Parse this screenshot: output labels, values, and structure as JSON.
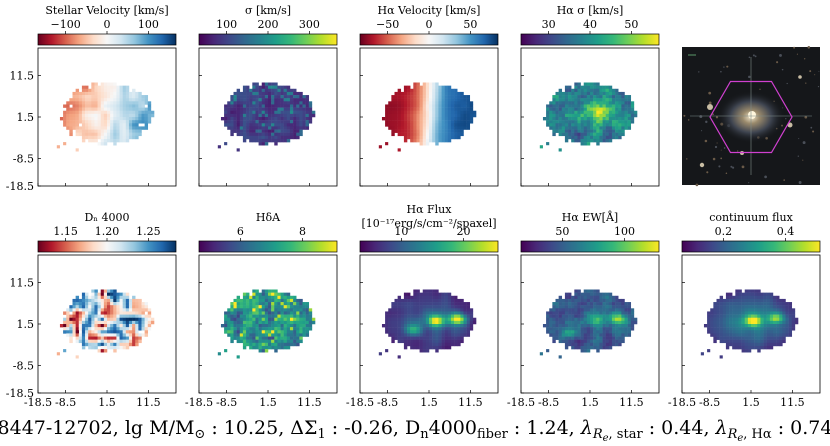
{
  "colors": {
    "rdbu": [
      "#053061",
      "#2166ac",
      "#4393c3",
      "#92c5de",
      "#d1e5f0",
      "#f7f7f7",
      "#fddbc7",
      "#f4a582",
      "#d6604d",
      "#b2182b",
      "#67001f"
    ],
    "viridis": [
      "#440154",
      "#482878",
      "#3e4989",
      "#31688e",
      "#26828e",
      "#1f9e89",
      "#35b779",
      "#6ece58",
      "#b5de2b",
      "#fde725"
    ],
    "hexagon": "#d040d0"
  },
  "figure": {
    "caption_parts": {
      "plateifu": "8447-12702",
      "lg_label": "lg",
      "mass_label": "M/M",
      "mass_sub": "⊙",
      "mass_value": " : 10.25, ",
      "sigma_label": "ΔΣ",
      "sigma_sub": "1",
      "sigma_value": " : -0.26, ",
      "dn_label": "D",
      "dn_sub": "n",
      "dn_label2": "4000",
      "dn_sub2": "fiber",
      "dn_value": " : 1.24, ",
      "lam_label": "λ",
      "lam_sub": "R",
      "lam_subsub": "e",
      "lam_star": ", star",
      "lam_star_value": " : 0.44, ",
      "lam_ha": ", Hα",
      "lam_ha_value": " : 0.74"
    },
    "row_axis_ticks": [
      "11.5",
      "1.5",
      "-8.5",
      "-18.5"
    ],
    "col_axis_ticks": [
      "-18.5",
      "-8.5",
      "1.5",
      "11.5"
    ]
  },
  "panels": [
    {
      "id": "stellar-velocity",
      "title": "Stellar Velocity [km/s]",
      "cmap": "rdbu",
      "ticks": [
        "−100",
        "0",
        "100"
      ],
      "kind": "vel",
      "row": 0,
      "col": 0
    },
    {
      "id": "sigma",
      "title": "σ [km/s]",
      "cmap": "viridis",
      "ticks": [
        "100",
        "200",
        "300"
      ],
      "kind": "sigma",
      "row": 0,
      "col": 1
    },
    {
      "id": "ha-velocity",
      "title": "Hα Velocity [km/s]",
      "cmap": "rdbu",
      "ticks": [
        "−50",
        "0",
        "50"
      ],
      "kind": "havel",
      "row": 0,
      "col": 2
    },
    {
      "id": "ha-sigma",
      "title": "Hα σ [km/s]",
      "cmap": "viridis",
      "ticks": [
        "30",
        "40",
        "50"
      ],
      "kind": "hasig",
      "row": 0,
      "col": 3
    },
    {
      "id": "dn4000",
      "title": "Dₙ 4000",
      "cmap": "rdbu",
      "ticks": [
        "1.15",
        "1.20",
        "1.25"
      ],
      "kind": "dn",
      "row": 1,
      "col": 0
    },
    {
      "id": "hdelta",
      "title": "HδA",
      "cmap": "viridis",
      "ticks": [
        "6",
        "8"
      ],
      "kind": "hd",
      "row": 1,
      "col": 1
    },
    {
      "id": "ha-flux",
      "title": "Hα Flux",
      "title2": "[10⁻¹⁷erg/s/cm⁻²/spaxel]",
      "cmap": "viridis",
      "ticks": [
        "10",
        "20"
      ],
      "kind": "flux",
      "row": 1,
      "col": 2
    },
    {
      "id": "ha-ew",
      "title": "Hα EW[Å]",
      "cmap": "viridis",
      "ticks": [
        "50",
        "100"
      ],
      "kind": "ew",
      "row": 1,
      "col": 3
    },
    {
      "id": "continuum",
      "title": "continuum flux",
      "cmap": "viridis",
      "ticks": [
        "0.2",
        "0.4"
      ],
      "kind": "cont",
      "row": 1,
      "col": 4
    }
  ]
}
